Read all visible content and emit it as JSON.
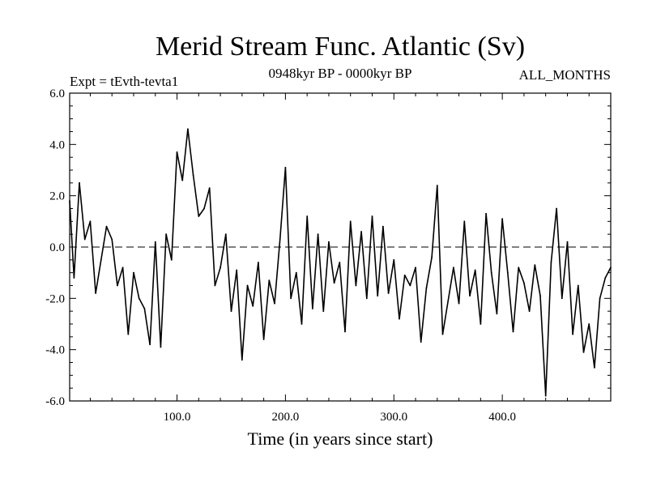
{
  "chart_data": {
    "type": "line",
    "title": "Merid Stream Func. Atlantic (Sv)",
    "subtitle_left": "Expt = tEvth-tevta1",
    "subtitle_center": "0948kyr BP - 0000kyr BP",
    "subtitle_right": "ALL_MONTHS",
    "xlabel": "Time (in years since start)",
    "ylabel": "",
    "xlim": [
      1,
      500
    ],
    "ylim": [
      -6.0,
      6.0
    ],
    "xticks": [
      100,
      200,
      300,
      400
    ],
    "xtick_labels": [
      "100.0",
      "200.0",
      "300.0",
      "400.0"
    ],
    "yticks": [
      -6,
      -4,
      -2,
      0,
      2,
      4,
      6
    ],
    "ytick_labels": [
      "-6.0",
      "-4.0",
      "-2.0",
      "0.0",
      "2.0",
      "4.0",
      "6.0"
    ],
    "reference_line": {
      "y": 0.0,
      "style": "dashed"
    },
    "series": [
      {
        "name": "Merid Stream Func. Atlantic",
        "x": [
          1,
          5,
          10,
          15,
          20,
          25,
          30,
          35,
          40,
          45,
          50,
          55,
          60,
          65,
          70,
          75,
          80,
          85,
          90,
          95,
          100,
          105,
          110,
          115,
          120,
          125,
          130,
          135,
          140,
          145,
          150,
          155,
          160,
          165,
          170,
          175,
          180,
          185,
          190,
          195,
          200,
          205,
          210,
          215,
          220,
          225,
          230,
          235,
          240,
          245,
          250,
          255,
          260,
          265,
          270,
          275,
          280,
          285,
          290,
          295,
          300,
          305,
          310,
          315,
          320,
          325,
          330,
          335,
          340,
          345,
          350,
          355,
          360,
          365,
          370,
          375,
          380,
          385,
          390,
          395,
          400,
          405,
          410,
          415,
          420,
          425,
          430,
          435,
          440,
          445,
          450,
          455,
          460,
          465,
          470,
          475,
          480,
          485,
          490,
          495,
          500
        ],
        "values": [
          1.8,
          -1.2,
          2.5,
          0.3,
          1.0,
          -1.8,
          -0.5,
          0.8,
          0.3,
          -1.5,
          -0.8,
          -3.4,
          -1.0,
          -2.0,
          -2.4,
          -3.8,
          0.2,
          -3.9,
          0.5,
          -0.5,
          3.7,
          2.6,
          4.6,
          2.8,
          1.2,
          1.5,
          2.3,
          -1.5,
          -0.8,
          0.5,
          -2.5,
          -0.9,
          -4.4,
          -1.5,
          -2.3,
          -0.6,
          -3.6,
          -1.3,
          -2.2,
          0.3,
          3.1,
          -2.0,
          -1.0,
          -3.0,
          1.2,
          -2.4,
          0.5,
          -2.5,
          0.2,
          -1.4,
          -0.6,
          -3.3,
          1.0,
          -1.5,
          0.6,
          -2.0,
          1.2,
          -1.9,
          0.8,
          -1.8,
          -0.5,
          -2.8,
          -1.1,
          -1.5,
          -0.8,
          -3.7,
          -1.6,
          -0.4,
          2.4,
          -3.4,
          -2.1,
          -0.8,
          -2.2,
          1.0,
          -1.9,
          -0.9,
          -3.0,
          1.3,
          -1.0,
          -2.6,
          1.1,
          -1.0,
          -3.3,
          -0.8,
          -1.4,
          -2.5,
          -0.7,
          -1.9,
          -5.8,
          -0.6,
          1.5,
          -2.0,
          0.2,
          -3.4,
          -1.5,
          -4.1,
          -3.0,
          -4.7,
          -2.0,
          -1.2,
          -0.8
        ]
      }
    ]
  }
}
